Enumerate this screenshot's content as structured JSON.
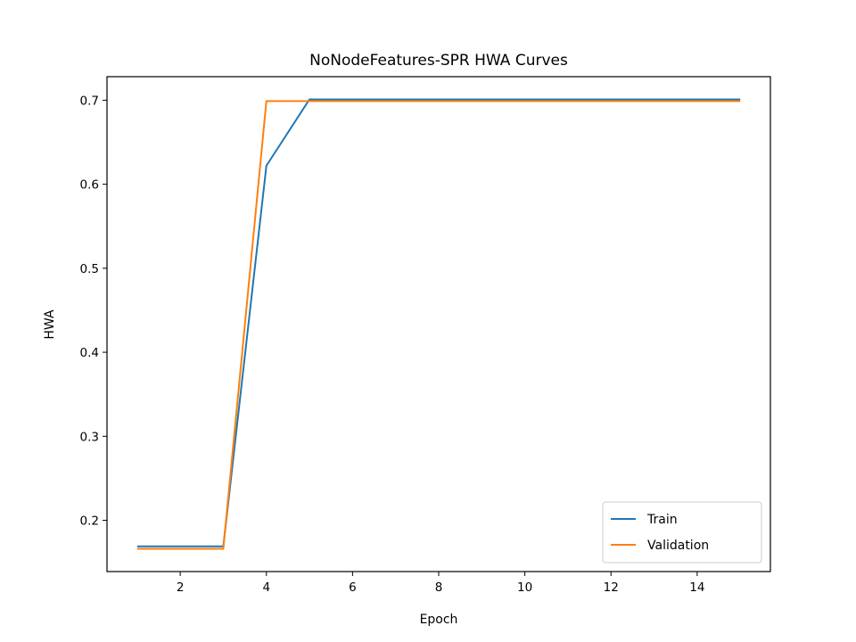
{
  "chart_data": {
    "type": "line",
    "title": "NoNodeFeatures-SPR HWA Curves",
    "xlabel": "Epoch",
    "ylabel": "HWA",
    "xlim": [
      0.3,
      15.7
    ],
    "ylim": [
      0.139,
      0.728
    ],
    "xticks": [
      2,
      4,
      6,
      8,
      10,
      12,
      14
    ],
    "yticks": [
      0.2,
      0.3,
      0.4,
      0.5,
      0.6,
      0.7
    ],
    "grid": false,
    "legend_position": "lower-right",
    "x": [
      1,
      2,
      3,
      4,
      5,
      6,
      7,
      8,
      9,
      10,
      11,
      12,
      13,
      14,
      15
    ],
    "series": [
      {
        "name": "Train",
        "color": "#1f77b4",
        "values": [
          0.169,
          0.169,
          0.169,
          0.622,
          0.701,
          0.701,
          0.701,
          0.701,
          0.701,
          0.701,
          0.701,
          0.701,
          0.701,
          0.701,
          0.701
        ]
      },
      {
        "name": "Validation",
        "color": "#ff7f0e",
        "values": [
          0.166,
          0.166,
          0.166,
          0.699,
          0.699,
          0.699,
          0.699,
          0.699,
          0.699,
          0.699,
          0.699,
          0.699,
          0.699,
          0.699,
          0.699
        ]
      }
    ]
  }
}
